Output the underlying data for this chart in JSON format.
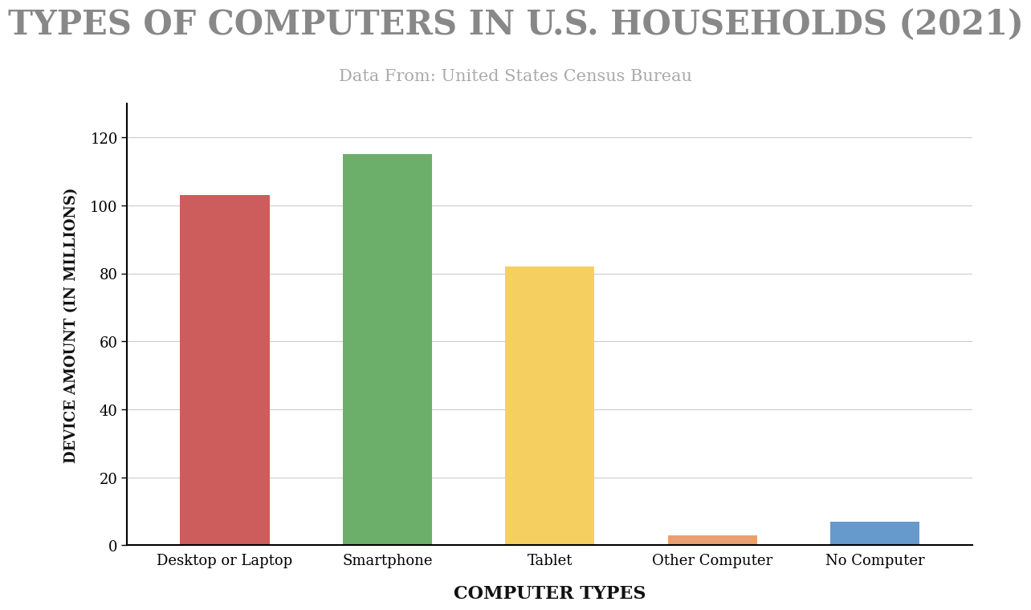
{
  "title": "TYPES OF COMPUTERS IN U.S. HOUSEHOLDS (2021)",
  "subtitle": "Data From: United States Census Bureau",
  "xlabel": "COMPUTER TYPES",
  "ylabel": "DEVICE AMOUNT (IN MILLIONS)",
  "categories": [
    "Desktop or Laptop",
    "Smartphone",
    "Tablet",
    "Other Computer",
    "No Computer"
  ],
  "values": [
    103,
    115,
    82,
    3,
    7
  ],
  "bar_colors": [
    "#CD5C5C",
    "#6BAF6B",
    "#F5D060",
    "#E8A070",
    "#6699CC"
  ],
  "ylim": [
    0,
    130
  ],
  "yticks": [
    0,
    20,
    40,
    60,
    80,
    100,
    120
  ],
  "background_color": "#ffffff",
  "title_fontsize": 30,
  "subtitle_fontsize": 15,
  "xlabel_fontsize": 16,
  "ylabel_fontsize": 13,
  "tick_fontsize": 13,
  "title_color": "#888888",
  "subtitle_color": "#aaaaaa",
  "xlabel_color": "#111111",
  "ylabel_color": "#111111",
  "grid_color": "#cccccc"
}
